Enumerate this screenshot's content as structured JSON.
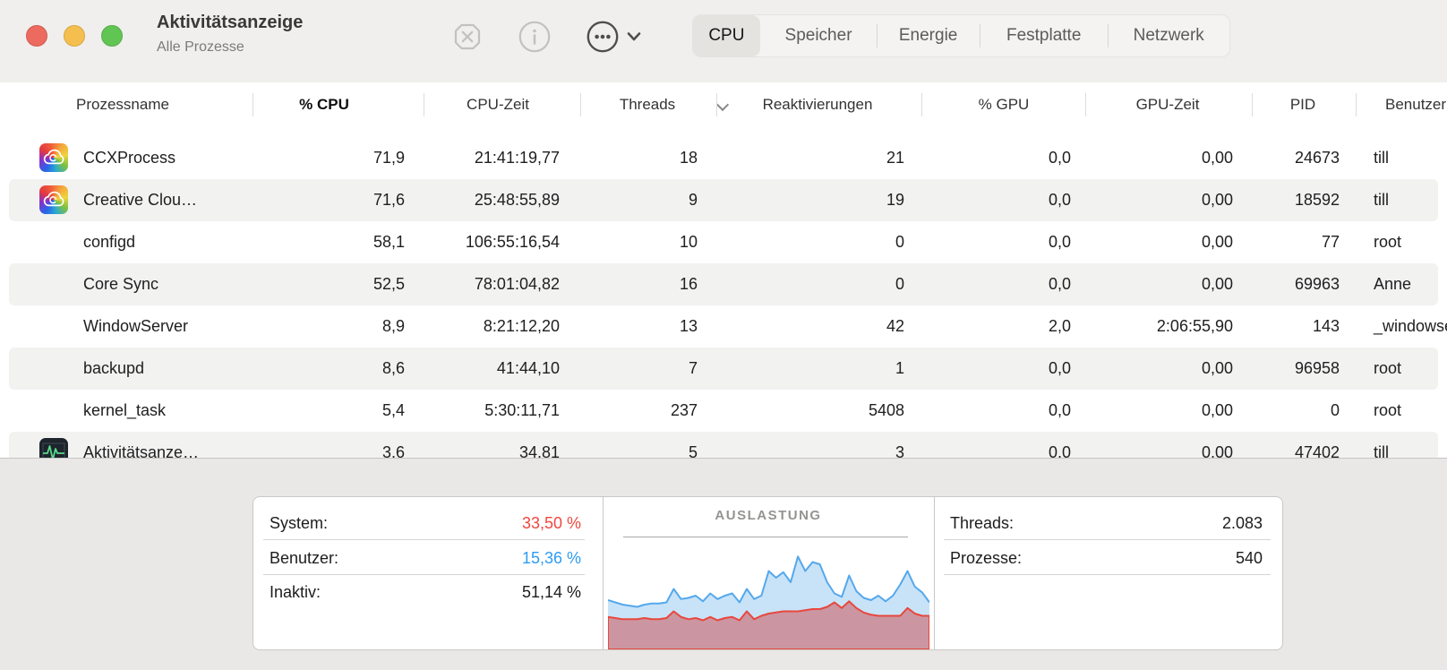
{
  "window": {
    "title": "Aktivitätsanzeige",
    "subtitle": "Alle Prozesse"
  },
  "toolbar": {
    "buttons": [
      {
        "name": "quit-process",
        "icon": "x-octagon-icon",
        "enabled": false
      },
      {
        "name": "inspect-process",
        "icon": "info-circle-icon",
        "enabled": false
      },
      {
        "name": "more-options",
        "icon": "ellipsis-circle-icon",
        "enabled": true
      },
      {
        "name": "view-menu",
        "icon": "chevron-down-icon",
        "enabled": true
      }
    ],
    "tabs": [
      {
        "label": "CPU",
        "selected": true
      },
      {
        "label": "Speicher",
        "selected": false
      },
      {
        "label": "Energie",
        "selected": false
      },
      {
        "label": "Festplatte",
        "selected": false
      },
      {
        "label": "Netzwerk",
        "selected": false
      }
    ]
  },
  "table": {
    "columns": [
      "Prozessname",
      "% CPU",
      "CPU-Zeit",
      "Threads",
      "Reaktivierungen",
      "% GPU",
      "GPU-Zeit",
      "PID",
      "Benutzer"
    ],
    "sort_column": "% CPU",
    "sort_direction": "desc",
    "rows": [
      {
        "icon": "adobe-cc",
        "name": "CCXProcess",
        "cpu": "71,9",
        "cpu_time": "21:41:19,77",
        "threads": "18",
        "wakeups": "21",
        "gpu": "0,0",
        "gpu_time": "0,00",
        "pid": "24673",
        "user": "till"
      },
      {
        "icon": "adobe-cc",
        "name": "Creative Clou…",
        "cpu": "71,6",
        "cpu_time": "25:48:55,89",
        "threads": "9",
        "wakeups": "19",
        "gpu": "0,0",
        "gpu_time": "0,00",
        "pid": "18592",
        "user": "till"
      },
      {
        "icon": null,
        "name": "configd",
        "cpu": "58,1",
        "cpu_time": "106:55:16,54",
        "threads": "10",
        "wakeups": "0",
        "gpu": "0,0",
        "gpu_time": "0,00",
        "pid": "77",
        "user": "root"
      },
      {
        "icon": null,
        "name": "Core Sync",
        "cpu": "52,5",
        "cpu_time": "78:01:04,82",
        "threads": "16",
        "wakeups": "0",
        "gpu": "0,0",
        "gpu_time": "0,00",
        "pid": "69963",
        "user": "Anne"
      },
      {
        "icon": null,
        "name": "WindowServer",
        "cpu": "8,9",
        "cpu_time": "8:21:12,20",
        "threads": "13",
        "wakeups": "42",
        "gpu": "2,0",
        "gpu_time": "2:06:55,90",
        "pid": "143",
        "user": "_windowserver"
      },
      {
        "icon": null,
        "name": "backupd",
        "cpu": "8,6",
        "cpu_time": "41:44,10",
        "threads": "7",
        "wakeups": "1",
        "gpu": "0,0",
        "gpu_time": "0,00",
        "pid": "96958",
        "user": "root"
      },
      {
        "icon": null,
        "name": "kernel_task",
        "cpu": "5,4",
        "cpu_time": "5:30:11,71",
        "threads": "237",
        "wakeups": "5408",
        "gpu": "0,0",
        "gpu_time": "0,00",
        "pid": "0",
        "user": "root"
      },
      {
        "icon": "activity-monitor",
        "name": "Aktivitätsanze…",
        "cpu": "3,6",
        "cpu_time": "34,81",
        "threads": "5",
        "wakeups": "3",
        "gpu": "0,0",
        "gpu_time": "0,00",
        "pid": "47402",
        "user": "till"
      }
    ]
  },
  "footer": {
    "left_stats": [
      {
        "label": "System:",
        "value": "33,50 %",
        "color": "#f0473e"
      },
      {
        "label": "Benutzer:",
        "value": "15,36 %",
        "color": "#2e9cf5"
      },
      {
        "label": "Inaktiv:",
        "value": "51,14 %",
        "color": "#1c1c1e"
      }
    ],
    "right_stats": [
      {
        "label": "Threads:",
        "value": "2.083"
      },
      {
        "label": "Prozesse:",
        "value": "540"
      }
    ]
  },
  "chart_data": {
    "type": "area",
    "title": "AUSLASTUNG",
    "xlabel": "",
    "ylabel": "",
    "ylim": [
      0,
      1
    ],
    "grid": false,
    "legend": false,
    "note": "Stacked CPU load history; values are fraction of graph height, evenly spaced in time (oldest left)",
    "series": [
      {
        "name": "System",
        "stroke": "#e8473d",
        "fill": "#cb96a1",
        "values": [
          0.29,
          0.28,
          0.27,
          0.27,
          0.27,
          0.28,
          0.27,
          0.27,
          0.28,
          0.34,
          0.29,
          0.27,
          0.28,
          0.26,
          0.29,
          0.26,
          0.28,
          0.29,
          0.26,
          0.34,
          0.27,
          0.3,
          0.32,
          0.33,
          0.34,
          0.34,
          0.34,
          0.35,
          0.36,
          0.36,
          0.38,
          0.42,
          0.37,
          0.43,
          0.37,
          0.33,
          0.31,
          0.3,
          0.3,
          0.3,
          0.3,
          0.37,
          0.32,
          0.3,
          0.3
        ]
      },
      {
        "name": "System + Benutzer",
        "stroke": "#55a8ec",
        "fill": "#c8e3f8",
        "values": [
          0.44,
          0.42,
          0.4,
          0.39,
          0.38,
          0.4,
          0.41,
          0.41,
          0.42,
          0.54,
          0.45,
          0.46,
          0.48,
          0.43,
          0.5,
          0.45,
          0.48,
          0.5,
          0.42,
          0.54,
          0.45,
          0.48,
          0.7,
          0.64,
          0.69,
          0.6,
          0.83,
          0.7,
          0.78,
          0.76,
          0.6,
          0.5,
          0.47,
          0.66,
          0.52,
          0.46,
          0.44,
          0.48,
          0.43,
          0.48,
          0.58,
          0.7,
          0.56,
          0.51,
          0.42
        ]
      }
    ]
  }
}
